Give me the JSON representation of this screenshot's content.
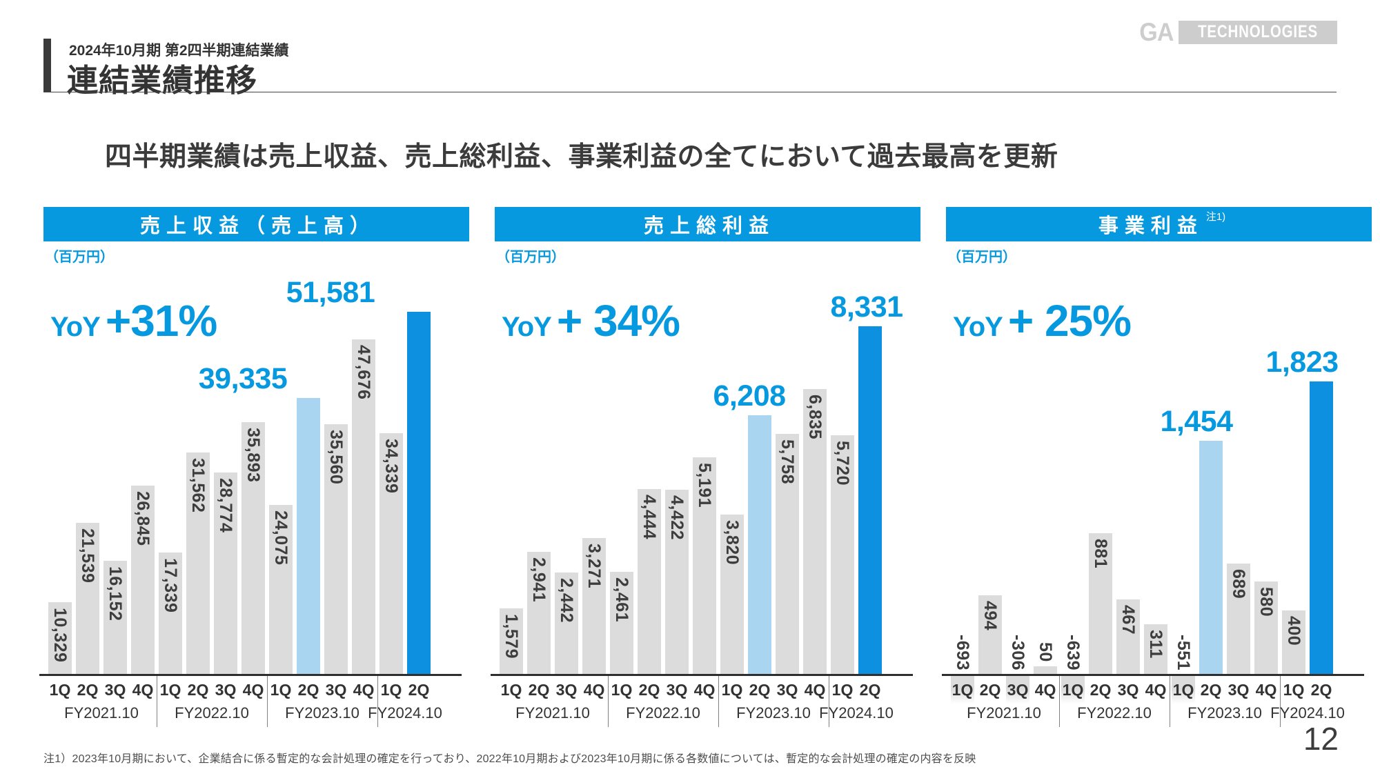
{
  "header": {
    "eyebrow": "2024年10月期 第2四半期連結業績",
    "title": "連結業績推移"
  },
  "logo": {
    "ga": "GA",
    "word": "TECHNOLOGIES"
  },
  "message": "四半期業績は売上収益、売上総利益、事業利益の全てにおいて過去最高を更新",
  "footnote": "注1）2023年10月期において、企業結合に係る暫定的な会計処理の確定を行っており、2022年10月期および2023年10月期に係る各数値については、暫定的な会計処理の確定の内容を反映",
  "page_number": "12",
  "colors": {
    "accent": "#0699e0",
    "bar_gray": "#dcdcdc",
    "bar_light_blue": "#aad5f1",
    "bar_dark_blue": "#0d90e0",
    "label_dark": "#3d3d3d"
  },
  "chart_data": [
    {
      "type": "bar",
      "title": "売上収益（売上高）",
      "note": "",
      "unit": "（百万円）",
      "yoy_label": "YoY",
      "yoy_value": "+31%",
      "categories": [
        "1Q",
        "2Q",
        "3Q",
        "4Q",
        "1Q",
        "2Q",
        "3Q",
        "4Q",
        "1Q",
        "2Q",
        "3Q",
        "4Q",
        "1Q",
        "2Q"
      ],
      "groups": [
        {
          "label": "FY2021.10",
          "quarters": 4
        },
        {
          "label": "FY2022.10",
          "quarters": 4
        },
        {
          "label": "FY2023.10",
          "quarters": 4
        },
        {
          "label": "FY2024.10",
          "quarters": 2
        }
      ],
      "values": [
        10329,
        21539,
        16152,
        26845,
        17339,
        31562,
        28774,
        35893,
        24075,
        39335,
        35560,
        47676,
        34339,
        51581
      ],
      "labels": [
        "10,329",
        "21,539",
        "16,152",
        "26,845",
        "17,339",
        "31,562",
        "28,774",
        "35,893",
        "24,075",
        "39,335",
        "35,560",
        "47,676",
        "34,339",
        "51,581"
      ],
      "highlight_light_index": 9,
      "highlight_dark_index": 13,
      "ylim": [
        0,
        51581
      ],
      "legend": "none",
      "grid": false
    },
    {
      "type": "bar",
      "title": "売上総利益",
      "note": "",
      "unit": "（百万円）",
      "yoy_label": "YoY",
      "yoy_value": "+ 34%",
      "categories": [
        "1Q",
        "2Q",
        "3Q",
        "4Q",
        "1Q",
        "2Q",
        "3Q",
        "4Q",
        "1Q",
        "2Q",
        "3Q",
        "4Q",
        "1Q",
        "2Q"
      ],
      "groups": [
        {
          "label": "FY2021.10",
          "quarters": 4
        },
        {
          "label": "FY2022.10",
          "quarters": 4
        },
        {
          "label": "FY2023.10",
          "quarters": 4
        },
        {
          "label": "FY2024.10",
          "quarters": 2
        }
      ],
      "values": [
        1579,
        2941,
        2442,
        3271,
        2461,
        4444,
        4422,
        5191,
        3820,
        6208,
        5758,
        6835,
        5720,
        8331
      ],
      "labels": [
        "1,579",
        "2,941",
        "2,442",
        "3,271",
        "2,461",
        "4,444",
        "4,422",
        "5,191",
        "3,820",
        "6,208",
        "5,758",
        "6,835",
        "5,720",
        "8,331"
      ],
      "highlight_light_index": 9,
      "highlight_dark_index": 13,
      "ylim": [
        0,
        8331
      ],
      "legend": "none",
      "grid": false
    },
    {
      "type": "bar",
      "title": "事業利益",
      "note": "注1)",
      "unit": "（百万円）",
      "yoy_label": "YoY",
      "yoy_value": "+ 25%",
      "categories": [
        "1Q",
        "2Q",
        "3Q",
        "4Q",
        "1Q",
        "2Q",
        "3Q",
        "4Q",
        "1Q",
        "2Q",
        "3Q",
        "4Q",
        "1Q",
        "2Q"
      ],
      "groups": [
        {
          "label": "FY2021.10",
          "quarters": 4
        },
        {
          "label": "FY2022.10",
          "quarters": 4
        },
        {
          "label": "FY2023.10",
          "quarters": 4
        },
        {
          "label": "FY2024.10",
          "quarters": 2
        }
      ],
      "values": [
        -693,
        494,
        -306,
        50,
        -639,
        881,
        467,
        311,
        -551,
        1454,
        689,
        580,
        400,
        1823
      ],
      "labels": [
        "-693",
        "494",
        "-306",
        "50",
        "-639",
        "881",
        "467",
        "311",
        "-551",
        "1,454",
        "689",
        "580",
        "400",
        "1,823"
      ],
      "highlight_light_index": 9,
      "highlight_dark_index": 13,
      "ylim": [
        -700,
        1823
      ],
      "legend": "none",
      "grid": false
    }
  ]
}
